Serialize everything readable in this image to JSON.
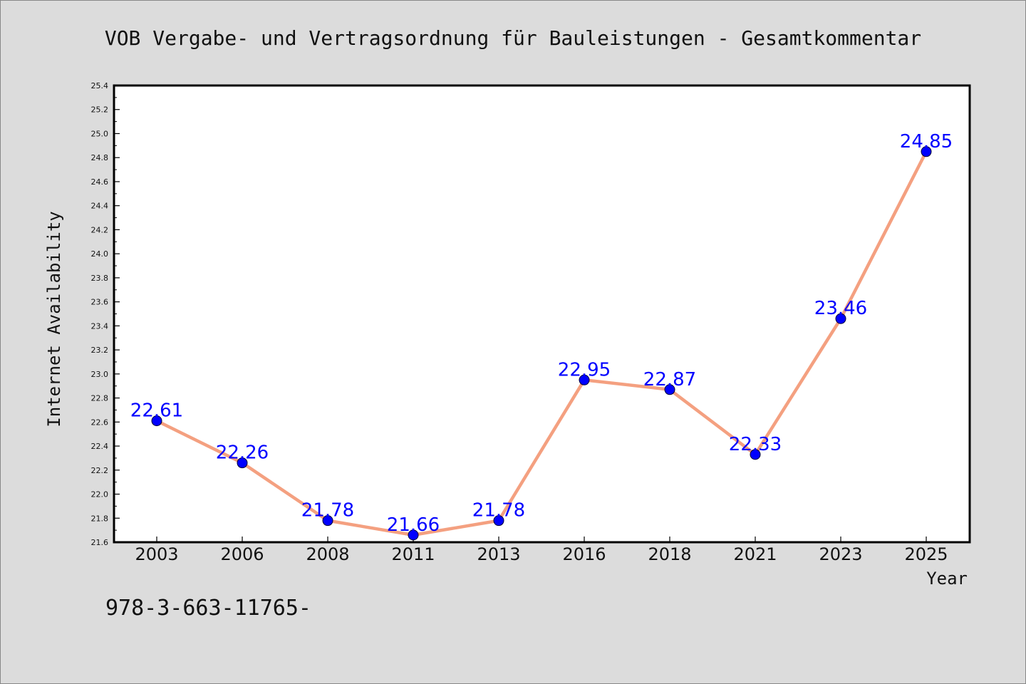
{
  "page": {
    "background": "#dcdcdc",
    "footer_text": "978-3-663-11765-"
  },
  "chart_data": {
    "type": "line",
    "title": "VOB Vergabe- und Vertragsordnung für Bauleistungen - Gesamtkommentar",
    "xlabel": "Year",
    "ylabel": "Internet Availability",
    "categories": [
      "2003",
      "2006",
      "2008",
      "2011",
      "2013",
      "2016",
      "2018",
      "2021",
      "2023",
      "2025"
    ],
    "series": [
      {
        "values": [
          22.61,
          22.26,
          21.78,
          21.66,
          21.78,
          22.95,
          22.87,
          22.33,
          23.46,
          24.85
        ],
        "line_color": "#f4a080",
        "marker_color": "#0000ff",
        "label_color": "#0000ff"
      }
    ],
    "ylim": [
      21.6,
      25.4
    ],
    "yticks": [
      "21.6",
      "21.8",
      "22.0",
      "22.2",
      "22.4",
      "22.6",
      "22.8",
      "23.0",
      "23.2",
      "23.4",
      "23.6",
      "23.8",
      "24.0",
      "24.2",
      "24.4",
      "24.6",
      "24.8",
      "25.0",
      "25.2",
      "25.4"
    ],
    "grid": false,
    "legend": "none",
    "plot_background": "#ffffff"
  }
}
